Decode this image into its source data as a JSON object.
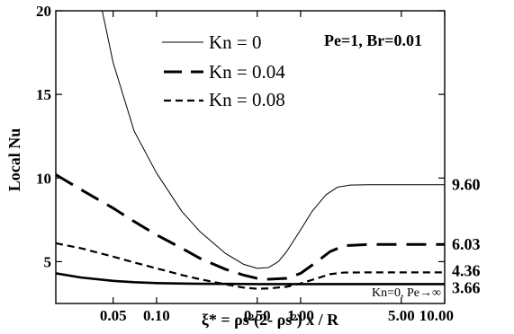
{
  "chart_data": {
    "type": "line",
    "xlabel": "ξ* = ρs²(2- ρs²) x / R",
    "ylabel": "Local Nu",
    "xscale": "log",
    "xlim": [
      0.02,
      10.0
    ],
    "ylim": [
      2.5,
      20
    ],
    "xticks": [
      0.05,
      0.1,
      0.5,
      1.0,
      5.0,
      10.0
    ],
    "xtick_labels": [
      "0.05",
      "0.10",
      "0.50",
      "1.00",
      "5.00",
      "10.00"
    ],
    "yticks": [
      5,
      10,
      15,
      20
    ],
    "ytick_labels": [
      "5",
      "10",
      "15",
      "20"
    ],
    "params_text": "Pe=1, Br=0.01",
    "legend_position": "top-center",
    "series": [
      {
        "name": "Kn = 0",
        "style": "thin-solid",
        "end_label": "9.60",
        "x": [
          0.042,
          0.05,
          0.07,
          0.1,
          0.15,
          0.2,
          0.3,
          0.4,
          0.5,
          0.6,
          0.7,
          0.8,
          1.0,
          1.2,
          1.5,
          1.8,
          2.2,
          3.0,
          5.0,
          10.0
        ],
        "y": [
          20.0,
          16.9,
          12.8,
          10.3,
          8.0,
          6.8,
          5.5,
          4.85,
          4.6,
          4.65,
          5.0,
          5.6,
          6.9,
          8.0,
          9.0,
          9.45,
          9.58,
          9.6,
          9.6,
          9.6
        ]
      },
      {
        "name": "Kn = 0.04",
        "style": "long-dash",
        "end_label": "6.03",
        "x": [
          0.02,
          0.03,
          0.05,
          0.07,
          0.1,
          0.15,
          0.2,
          0.3,
          0.4,
          0.5,
          0.6,
          0.8,
          1.0,
          1.3,
          1.6,
          2.0,
          3.0,
          5.0,
          10.0
        ],
        "y": [
          10.2,
          9.3,
          8.2,
          7.4,
          6.6,
          5.8,
          5.2,
          4.55,
          4.2,
          4.0,
          3.95,
          4.0,
          4.3,
          5.0,
          5.6,
          5.95,
          6.03,
          6.03,
          6.03
        ]
      },
      {
        "name": "Kn = 0.08",
        "style": "short-dash",
        "end_label": "4.36",
        "x": [
          0.02,
          0.03,
          0.05,
          0.07,
          0.1,
          0.15,
          0.2,
          0.3,
          0.4,
          0.5,
          0.6,
          0.8,
          1.0,
          1.3,
          1.6,
          2.0,
          3.0,
          5.0,
          10.0
        ],
        "y": [
          6.1,
          5.8,
          5.3,
          4.95,
          4.6,
          4.2,
          3.95,
          3.65,
          3.45,
          3.38,
          3.4,
          3.5,
          3.7,
          4.0,
          4.25,
          4.35,
          4.36,
          4.36,
          4.36
        ]
      },
      {
        "name": "Kn=0, Pe→∞",
        "style": "thick-solid",
        "end_label": "3.66",
        "x": [
          0.02,
          0.03,
          0.05,
          0.07,
          0.1,
          0.15,
          0.2,
          0.3,
          0.5,
          1.0,
          2.0,
          5.0,
          10.0
        ],
        "y": [
          4.3,
          4.05,
          3.85,
          3.77,
          3.72,
          3.69,
          3.68,
          3.67,
          3.66,
          3.66,
          3.66,
          3.66,
          3.66
        ]
      }
    ]
  }
}
